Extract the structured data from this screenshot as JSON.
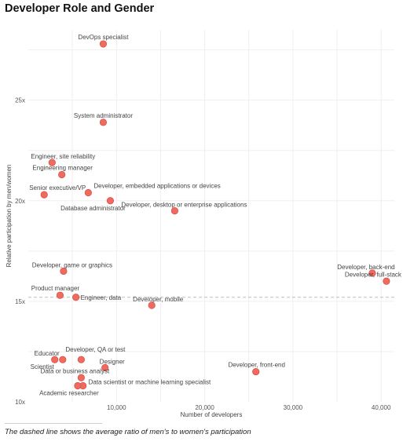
{
  "chart_data": {
    "type": "scatter",
    "title": "Developer Role and Gender",
    "xlabel": "Number of developers",
    "ylabel": "Relative participation by men/women",
    "x_ticks": [
      10000,
      20000,
      30000,
      40000
    ],
    "x_tick_labels": [
      "10,000",
      "20,000",
      "30,000",
      "40,000"
    ],
    "y_ticks": [
      10,
      15,
      20,
      25
    ],
    "y_tick_labels": [
      "10x",
      "15x",
      "20x",
      "25x"
    ],
    "xlim": [
      0,
      41500
    ],
    "ylim": [
      10,
      28.5
    ],
    "grid": true,
    "average_ratio": 15.2,
    "caption": "The dashed line shows the average ratio of men's to women's participation",
    "points": [
      {
        "label": "DevOps specialist",
        "x": 8500,
        "y": 27.8,
        "anchor": "middle",
        "dx": 0,
        "dy": -6
      },
      {
        "label": "System administrator",
        "x": 8500,
        "y": 23.9,
        "anchor": "middle",
        "dx": 0,
        "dy": -6
      },
      {
        "label": "Engineer, site reliability",
        "x": 2700,
        "y": 21.9,
        "anchor": "middle",
        "dx": 14,
        "dy": -5
      },
      {
        "label": "Engineering manager",
        "x": 3800,
        "y": 21.3,
        "anchor": "middle",
        "dx": 1,
        "dy": -6
      },
      {
        "label": "Senior executive/VP",
        "x": 1800,
        "y": 20.3,
        "anchor": "middle",
        "dx": 17,
        "dy": -6
      },
      {
        "label": "Developer, embedded applications or devices",
        "x": 6800,
        "y": 20.4,
        "anchor": "start",
        "dx": 7,
        "dy": -6
      },
      {
        "label": "Database administrator",
        "x": 9300,
        "y": 20.0,
        "anchor": "middle",
        "dx": -22,
        "dy": 12
      },
      {
        "label": "Developer, desktop or enterprise applications",
        "x": 16600,
        "y": 19.5,
        "anchor": "middle",
        "dx": 12,
        "dy": -5
      },
      {
        "label": "Developer, game or graphics",
        "x": 4000,
        "y": 16.5,
        "anchor": "middle",
        "dx": 11,
        "dy": -5
      },
      {
        "label": "Developer, back-end",
        "x": 39000,
        "y": 16.4,
        "anchor": "middle",
        "dx": -8,
        "dy": -5
      },
      {
        "label": "Developer, full-stack",
        "x": 40600,
        "y": 16.0,
        "anchor": "middle",
        "dx": -17,
        "dy": -6
      },
      {
        "label": "Product manager",
        "x": 3600,
        "y": 15.3,
        "anchor": "middle",
        "dx": -6,
        "dy": -6
      },
      {
        "label": "Engineer, data",
        "x": 5400,
        "y": 15.2,
        "anchor": "start",
        "dx": 6,
        "dy": 3
      },
      {
        "label": "Developer, mobile",
        "x": 14000,
        "y": 14.8,
        "anchor": "middle",
        "dx": 8,
        "dy": -5
      },
      {
        "label": "Educator",
        "x": 3000,
        "y": 12.1,
        "anchor": "middle",
        "dx": -10,
        "dy": -5
      },
      {
        "label": "Developer, QA or test",
        "x": 6000,
        "y": 12.1,
        "anchor": "middle",
        "dx": 18,
        "dy": -10
      },
      {
        "label": "Scientist",
        "x": 3900,
        "y": 12.1,
        "anchor": "middle",
        "dx": -26,
        "dy": 12
      },
      {
        "label": "Designer",
        "x": 8700,
        "y": 11.7,
        "anchor": "middle",
        "dx": 9,
        "dy": -5
      },
      {
        "label": "Developer, front-end",
        "x": 25800,
        "y": 11.5,
        "anchor": "middle",
        "dx": 1,
        "dy": -6
      },
      {
        "label": "Data or business analyst",
        "x": 6000,
        "y": 11.2,
        "anchor": "middle",
        "dx": -8,
        "dy": -6
      },
      {
        "label": "Data scientist or machine learning specialist",
        "x": 6200,
        "y": 10.8,
        "anchor": "start",
        "dx": 7,
        "dy": -2
      },
      {
        "label": "Academic researcher",
        "x": 5600,
        "y": 10.8,
        "anchor": "middle",
        "dx": -11,
        "dy": 12
      }
    ]
  }
}
